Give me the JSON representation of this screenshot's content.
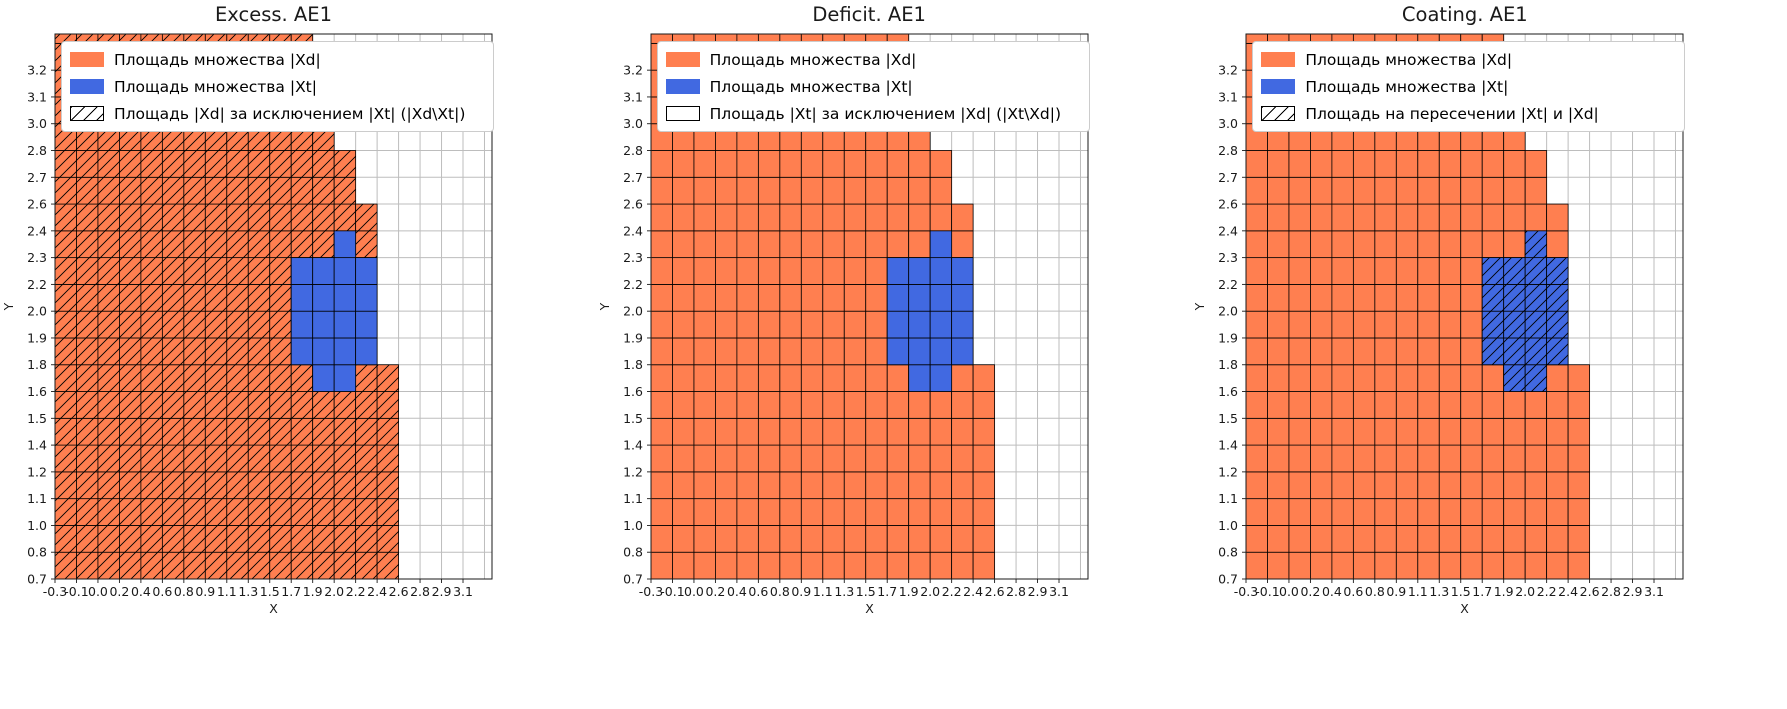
{
  "shared_grid": {
    "x_axis_label": "X",
    "y_axis_label": "Y",
    "x_ticks": [
      "-0.3",
      "-0.1",
      "0.0",
      "0.2",
      "0.4",
      "0.6",
      "0.8",
      "0.9",
      "1.1",
      "1.3",
      "1.5",
      "1.7",
      "1.9",
      "2.0",
      "2.2",
      "2.4",
      "2.6",
      "2.8",
      "2.9",
      "3.1"
    ],
    "y_ticks": [
      "0.7",
      "0.8",
      "1.0",
      "1.1",
      "1.2",
      "1.4",
      "1.5",
      "1.6",
      "1.8",
      "1.9",
      "2.0",
      "2.2",
      "2.3",
      "2.4",
      "2.6",
      "2.7",
      "2.8",
      "3.0",
      "3.1",
      "3.2"
    ],
    "n_cols": 20,
    "n_rows": 20,
    "xd_color": "#FF7F50",
    "xt_color": "#4169E1",
    "grid_color": "#bdbdbd",
    "cell_edge_color": "#000000",
    "xd_right_edge_by_row": [
      16,
      16,
      16,
      16,
      16,
      16,
      16,
      16,
      15,
      15,
      15,
      15,
      15,
      15,
      14,
      14,
      13,
      12,
      12,
      12,
      12
    ],
    "xt_cells": [
      {
        "row": 7,
        "c0": 12,
        "c1": 14
      },
      {
        "row": 8,
        "c0": 11,
        "c1": 15
      },
      {
        "row": 9,
        "c0": 11,
        "c1": 15
      },
      {
        "row": 10,
        "c0": 11,
        "c1": 15
      },
      {
        "row": 11,
        "c0": 11,
        "c1": 15
      },
      {
        "row": 12,
        "c0": 13,
        "c1": 14
      }
    ]
  },
  "chart_data": [
    {
      "type": "heatmap",
      "title": "Excess. AE1",
      "xlabel": "X",
      "ylabel": "Y",
      "hatch_region": "xd_minus_xt",
      "legend_position": "upper left",
      "legend": [
        {
          "swatch": "xd",
          "label": "Площадь множества |Xd|"
        },
        {
          "swatch": "xt",
          "label": "Площадь множества  |Xt|"
        },
        {
          "swatch": "hatch",
          "label": "Площадь |Xd| за исключением |Xt| (|Xd\\Xt|)"
        }
      ]
    },
    {
      "type": "heatmap",
      "title": "Deficit. AE1",
      "xlabel": "X",
      "ylabel": "Y",
      "hatch_region": "none",
      "legend_position": "upper left",
      "legend": [
        {
          "swatch": "xd",
          "label": "Площадь множества |Xd|"
        },
        {
          "swatch": "xt",
          "label": "Площадь множества  |Xt|"
        },
        {
          "swatch": "empty",
          "label": "Площадь |Xt| за исключением |Xd| (|Xt\\Xd|)"
        }
      ]
    },
    {
      "type": "heatmap",
      "title": "Coating. AE1",
      "xlabel": "X",
      "ylabel": "Y",
      "hatch_region": "xt_intersect_xd",
      "legend_position": "upper left",
      "legend": [
        {
          "swatch": "xd",
          "label": "Площадь множества |Xd|"
        },
        {
          "swatch": "xt",
          "label": "Площадь множества  |Xt|"
        },
        {
          "swatch": "hatch",
          "label": "Площадь на пересечении |Xt| и |Xd|"
        }
      ]
    }
  ]
}
